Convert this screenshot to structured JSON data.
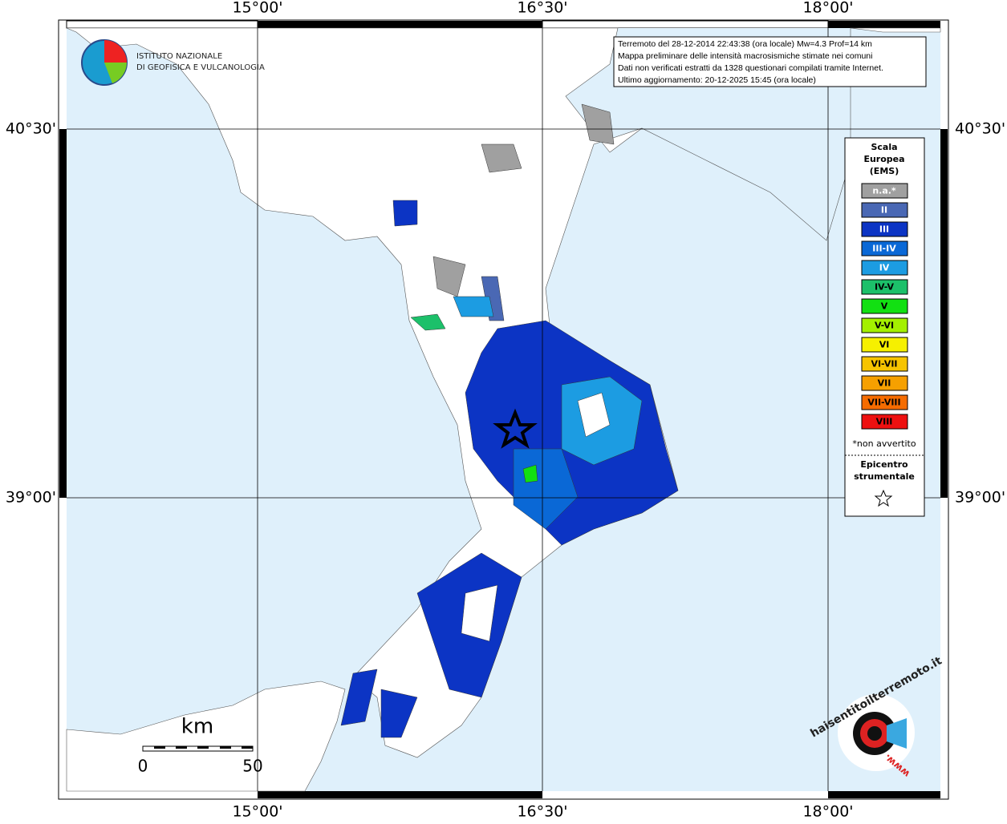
{
  "map": {
    "graticule": {
      "lon": [
        "15°00'",
        "16°30'",
        "18°00'"
      ],
      "lat": [
        "40°30'",
        "39°00'"
      ]
    },
    "info": [
      "Terremoto del 28-12-2014 22:43:38 (ora locale) Mw=4.3 Prof=14 km",
      "Mappa preliminare delle intensità macrosismiche stimate nei comuni",
      "Dati non verificati estratti da 1328 questionari compilati tramite Internet.",
      "Ultimo aggiornamento: 20-12-2025 15:45 (ora locale)"
    ],
    "logo": [
      "ISTITUTO NAZIONALE",
      "DI GEOFISICA E VULCANOLOGIA"
    ],
    "legend": {
      "title": [
        "Scala",
        "Europea",
        "(EMS)"
      ],
      "items": [
        {
          "label": "n.a.*",
          "color": "#a0a0a0"
        },
        {
          "label": "II",
          "color": "#4a68b4"
        },
        {
          "label": "III",
          "color": "#0c34c4"
        },
        {
          "label": "III-IV",
          "color": "#0a68d6"
        },
        {
          "label": "IV",
          "color": "#1c9ce2"
        },
        {
          "label": "IV-V",
          "color": "#1cc06a"
        },
        {
          "label": "V",
          "color": "#12e012"
        },
        {
          "label": "V-VI",
          "color": "#a4f000"
        },
        {
          "label": "VI",
          "color": "#f6f000"
        },
        {
          "label": "VI-VII",
          "color": "#f6c400"
        },
        {
          "label": "VII",
          "color": "#f6a000"
        },
        {
          "label": "VII-VIII",
          "color": "#f66c00"
        },
        {
          "label": "VIII",
          "color": "#ee1010"
        }
      ],
      "note": "*non avvertito",
      "epicenter": [
        "Epicentro",
        "strumentale"
      ]
    },
    "scale": {
      "unit": "km",
      "labels": [
        "0",
        "50"
      ]
    },
    "site": "haisentitoilterremoto.it",
    "site_prefix": "www."
  }
}
